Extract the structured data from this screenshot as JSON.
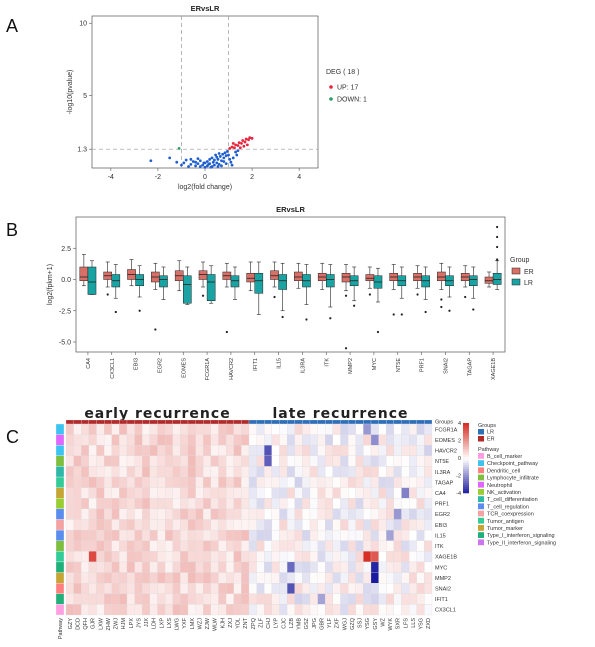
{
  "panels": {
    "A": {
      "label": "A"
    },
    "B": {
      "label": "B"
    },
    "C": {
      "label": "C"
    }
  },
  "chart_data": [
    {
      "type": "scatter",
      "panel": "A",
      "title": "ERvsLR",
      "xlabel": "log2(fold change)",
      "ylabel": "-log10(pvalue)",
      "xlim": [
        -4.8,
        4.8
      ],
      "ylim": [
        0,
        10.5
      ],
      "xticks": [
        "-4",
        "-2",
        "0",
        "2",
        "4"
      ],
      "yticks": [
        "1.3",
        "5",
        "10"
      ],
      "threshold_lines": {
        "x": [
          -1,
          1
        ],
        "y": 1.3
      },
      "legend": {
        "title": "DEG ( 18 )",
        "items": [
          "UP: 17",
          "DOWN: 1"
        ],
        "placement": "right"
      },
      "series": [
        {
          "name": "UP: 17",
          "color": "#e8253d",
          "points": [
            [
              1.05,
              1.35
            ],
            [
              1.15,
              1.45
            ],
            [
              1.25,
              1.4
            ],
            [
              1.3,
              1.6
            ],
            [
              1.4,
              1.55
            ],
            [
              1.45,
              1.75
            ],
            [
              1.55,
              1.7
            ],
            [
              1.6,
              1.9
            ],
            [
              1.7,
              1.8
            ],
            [
              1.75,
              2.0
            ],
            [
              1.85,
              1.95
            ],
            [
              1.9,
              2.1
            ],
            [
              2.0,
              2.05
            ],
            [
              1.2,
              1.7
            ],
            [
              1.5,
              1.4
            ],
            [
              1.65,
              1.5
            ],
            [
              1.8,
              1.6
            ]
          ]
        },
        {
          "name": "DOWN: 1",
          "color": "#2a9d6a",
          "points": [
            [
              -1.1,
              1.35
            ]
          ]
        },
        {
          "name": "",
          "color": "#1f5fd1",
          "points": [
            [
              -1.5,
              0.7
            ],
            [
              -2.3,
              0.5
            ],
            [
              -1.2,
              0.4
            ],
            [
              -0.9,
              0.35
            ],
            [
              -0.8,
              0.55
            ],
            [
              -0.6,
              0.25
            ],
            [
              -0.5,
              0.45
            ],
            [
              -0.4,
              0.15
            ],
            [
              -0.3,
              0.3
            ],
            [
              -0.2,
              0.1
            ],
            [
              -0.1,
              0.2
            ],
            [
              0,
              0.05
            ],
            [
              0.1,
              0.15
            ],
            [
              0.2,
              0.3
            ],
            [
              0.3,
              0.1
            ],
            [
              0.35,
              0.4
            ],
            [
              0.4,
              0.2
            ],
            [
              0.5,
              0.35
            ],
            [
              0.55,
              0.6
            ],
            [
              0.6,
              0.25
            ],
            [
              0.65,
              0.8
            ],
            [
              0.7,
              0.5
            ],
            [
              0.75,
              0.95
            ],
            [
              0.8,
              0.7
            ],
            [
              0.85,
              1.05
            ],
            [
              0.9,
              0.85
            ],
            [
              0.95,
              1.15
            ],
            [
              1.0,
              0.9
            ],
            [
              1.05,
              0.6
            ],
            [
              1.1,
              0.4
            ],
            [
              1.15,
              0.2
            ],
            [
              0.7,
              0.15
            ],
            [
              0.9,
              0.3
            ],
            [
              1.2,
              0.7
            ],
            [
              0.3,
              0.7
            ],
            [
              0.45,
              0.9
            ],
            [
              0.2,
              0.6
            ],
            [
              0.1,
              0.45
            ],
            [
              -0.2,
              0.5
            ],
            [
              -0.3,
              0.65
            ],
            [
              -0.05,
              0.35
            ],
            [
              0.25,
              0.05
            ],
            [
              0.55,
              0.1
            ],
            [
              0.8,
              0.45
            ],
            [
              -0.7,
              0.1
            ],
            [
              -1.0,
              0.2
            ],
            [
              1.3,
              1.1
            ],
            [
              1.35,
              0.9
            ],
            [
              1.4,
              1.2
            ],
            [
              0.6,
              1.0
            ],
            [
              0.5,
              0.75
            ],
            [
              0.4,
              0.55
            ],
            [
              -0.4,
              0.4
            ],
            [
              -0.6,
              0.6
            ],
            [
              0.15,
              0.25
            ],
            [
              0.0,
              0.35
            ]
          ]
        }
      ]
    },
    {
      "type": "box",
      "panel": "B",
      "title": "ERvsLR",
      "ylabel": "log2(fpkm+1)",
      "ylim": [
        -5.8,
        5.0
      ],
      "yticks": [
        "-5.0",
        "-2.5",
        "0.0",
        "2.5"
      ],
      "legend": {
        "title": "Group",
        "items": [
          "ER",
          "LR"
        ],
        "placement": "right"
      },
      "groups": [
        {
          "name": "ER",
          "color": "#d97068"
        },
        {
          "name": "LR",
          "color": "#1aa3a3"
        }
      ],
      "categories": [
        "CA4",
        "CX3CL1",
        "EBI3",
        "EGR2",
        "EOMES",
        "FCGR1A",
        "HAVCR2",
        "IFIT1",
        "IL15",
        "IL3RA",
        "ITK",
        "MMP2",
        "MYC",
        "NT5E",
        "PRF1",
        "SNAI2",
        "TAGAP",
        "XAGE1B"
      ],
      "boxes": {
        "ER": [
          {
            "q1": -0.1,
            "med": 0.2,
            "q3": 1.0,
            "lo": -0.5,
            "hi": 2.0,
            "out": []
          },
          {
            "q1": 0.0,
            "med": 0.3,
            "q3": 0.6,
            "lo": -0.6,
            "hi": 1.4,
            "out": [
              -1.2
            ]
          },
          {
            "q1": 0.0,
            "med": 0.4,
            "q3": 0.8,
            "lo": -0.5,
            "hi": 1.6,
            "out": []
          },
          {
            "q1": -0.2,
            "med": 0.2,
            "q3": 0.6,
            "lo": -0.8,
            "hi": 1.3,
            "out": [
              -4.0
            ]
          },
          {
            "q1": -0.1,
            "med": 0.3,
            "q3": 0.7,
            "lo": -0.9,
            "hi": 1.5,
            "out": []
          },
          {
            "q1": 0.0,
            "med": 0.4,
            "q3": 0.7,
            "lo": -0.6,
            "hi": 1.4,
            "out": [
              -1.3
            ]
          },
          {
            "q1": 0.0,
            "med": 0.3,
            "q3": 0.6,
            "lo": -0.6,
            "hi": 1.3,
            "out": [
              -4.2
            ]
          },
          {
            "q1": -0.2,
            "med": 0.1,
            "q3": 0.5,
            "lo": -0.9,
            "hi": 1.4,
            "out": []
          },
          {
            "q1": 0.0,
            "med": 0.3,
            "q3": 0.7,
            "lo": -0.6,
            "hi": 1.4,
            "out": [
              -1.4
            ]
          },
          {
            "q1": -0.1,
            "med": 0.2,
            "q3": 0.6,
            "lo": -0.7,
            "hi": 1.3,
            "out": []
          },
          {
            "q1": -0.1,
            "med": 0.2,
            "q3": 0.5,
            "lo": -0.8,
            "hi": 1.3,
            "out": []
          },
          {
            "q1": -0.2,
            "med": 0.2,
            "q3": 0.5,
            "lo": -0.9,
            "hi": 1.2,
            "out": [
              -1.3,
              -5.5
            ]
          },
          {
            "q1": -0.1,
            "med": 0.1,
            "q3": 0.4,
            "lo": -0.7,
            "hi": 1.0,
            "out": [
              -1.2
            ]
          },
          {
            "q1": -0.1,
            "med": 0.2,
            "q3": 0.5,
            "lo": -0.8,
            "hi": 1.2,
            "out": [
              -2.8
            ]
          },
          {
            "q1": -0.1,
            "med": 0.2,
            "q3": 0.5,
            "lo": -0.7,
            "hi": 1.1,
            "out": [
              -1.2
            ]
          },
          {
            "q1": -0.1,
            "med": 0.2,
            "q3": 0.6,
            "lo": -0.8,
            "hi": 1.3,
            "out": [
              -1.6,
              -2.2
            ]
          },
          {
            "q1": -0.1,
            "med": 0.2,
            "q3": 0.5,
            "lo": -0.6,
            "hi": 1.1,
            "out": [
              -1.4
            ]
          },
          {
            "q1": -0.3,
            "med": -0.1,
            "q3": 0.2,
            "lo": -0.6,
            "hi": 0.6,
            "out": []
          }
        ],
        "LR": [
          {
            "q1": -1.2,
            "med": -0.2,
            "q3": 1.0,
            "lo": -1.2,
            "hi": 1.5,
            "out": []
          },
          {
            "q1": -0.6,
            "med": -0.1,
            "q3": 0.4,
            "lo": -1.5,
            "hi": 1.2,
            "out": [
              -2.6
            ]
          },
          {
            "q1": -0.5,
            "med": 0.0,
            "q3": 0.4,
            "lo": -1.4,
            "hi": 1.1,
            "out": [
              -2.5
            ]
          },
          {
            "q1": -0.6,
            "med": 0.0,
            "q3": 0.3,
            "lo": -1.6,
            "hi": 1.0,
            "out": []
          },
          {
            "q1": -1.9,
            "med": -0.4,
            "q3": 0.3,
            "lo": -2.0,
            "hi": 1.0,
            "out": []
          },
          {
            "q1": -1.7,
            "med": -0.2,
            "q3": 0.4,
            "lo": -1.9,
            "hi": 1.1,
            "out": []
          },
          {
            "q1": -0.6,
            "med": -0.1,
            "q3": 0.3,
            "lo": -1.6,
            "hi": 1.0,
            "out": []
          },
          {
            "q1": -1.1,
            "med": -0.1,
            "q3": 0.5,
            "lo": -2.8,
            "hi": 1.4,
            "out": []
          },
          {
            "q1": -0.8,
            "med": -0.1,
            "q3": 0.4,
            "lo": -2.5,
            "hi": 1.3,
            "out": [
              -3.0
            ]
          },
          {
            "q1": -0.6,
            "med": -0.1,
            "q3": 0.4,
            "lo": -2.0,
            "hi": 1.2,
            "out": [
              -3.2
            ]
          },
          {
            "q1": -0.6,
            "med": 0.0,
            "q3": 0.4,
            "lo": -2.2,
            "hi": 1.2,
            "out": [
              -3.1
            ]
          },
          {
            "q1": -0.5,
            "med": -0.1,
            "q3": 0.3,
            "lo": -1.7,
            "hi": 1.0,
            "out": [
              -2.1
            ]
          },
          {
            "q1": -0.7,
            "med": -0.2,
            "q3": 0.3,
            "lo": -1.8,
            "hi": 0.9,
            "out": [
              -4.2
            ]
          },
          {
            "q1": -0.5,
            "med": -0.1,
            "q3": 0.3,
            "lo": -1.5,
            "hi": 1.0,
            "out": [
              -2.8
            ]
          },
          {
            "q1": -0.6,
            "med": -0.1,
            "q3": 0.3,
            "lo": -1.6,
            "hi": 1.0,
            "out": [
              -2.6
            ]
          },
          {
            "q1": -0.5,
            "med": -0.1,
            "q3": 0.3,
            "lo": -1.4,
            "hi": 1.0,
            "out": [
              -2.5
            ]
          },
          {
            "q1": -0.5,
            "med": 0.0,
            "q3": 0.3,
            "lo": -1.5,
            "hi": 1.0,
            "out": [
              -2.4
            ]
          },
          {
            "q1": -0.4,
            "med": 0.0,
            "q3": 0.5,
            "lo": -0.8,
            "hi": 1.5,
            "out": [
              1.6,
              2.6,
              3.4,
              4.2
            ]
          }
        ]
      }
    },
    {
      "type": "heatmap",
      "panel": "C",
      "column_groups": [
        {
          "name": "early recurrence",
          "label_color": "ER",
          "count": 24
        },
        {
          "name": "late recurrence",
          "label_color": "LR",
          "count": 24
        }
      ],
      "groups_label": "Groups",
      "pathway_label": "Pathway",
      "rows": [
        "FCGR1A",
        "EOMES",
        "HAVCR2",
        "NT5E",
        "IL3RA",
        "TAGAP",
        "CA4",
        "PRF1",
        "EGR2",
        "EBI3",
        "IL15",
        "ITK",
        "XAGE1B",
        "MYC",
        "MMP2",
        "SNAI2",
        "IFIT1",
        "CX3CL1"
      ],
      "row_pathway": [
        "Checkpoint_pathway",
        "Neutrophil",
        "Checkpoint_pathway",
        "Lymphocyte_infiltrate",
        "T_cell_differentiation",
        "Tumor_antigen",
        "Tumor_marker",
        "NK_activation",
        "T_cell_regulation",
        "TCR_coexpression",
        "T_cell_regulation",
        "Lymphocyte_infiltrate",
        "Tumor_antigen",
        "Type_I_interferon_signaling",
        "Tumor_marker",
        "Dendritic_cell",
        "Type_I_interferon_signaling",
        "B_cell_marker"
      ],
      "columns": [
        "GZY",
        "DCD",
        "QFH",
        "GJR",
        "LXW",
        "ZHW",
        "ZWJ",
        "HJM",
        "LPX",
        "JYS",
        "JJX",
        "LDH",
        "LXP",
        "LXS",
        "LWG",
        "YXF",
        "LMX",
        "WZJ",
        "ZJW",
        "WLW",
        "KJH",
        "ZXJ",
        "YDL",
        "ZNT",
        "ZPQ",
        "ZLF",
        "CHJ",
        "LYP",
        "CJC",
        "LZB",
        "YMB",
        "GSZ",
        "JPG",
        "GBR",
        "YLF",
        "ZXF",
        "WGJ",
        "GZQ",
        "SSJ",
        "YSG",
        "GSY",
        "WZ",
        "WYK",
        "SXR",
        "LFS",
        "LLS",
        "YSG2",
        "ZXD"
      ],
      "column_labels": [
        "GZY",
        "DCD",
        "QFH",
        "GJR",
        "LXW",
        "ZHW",
        "ZWJ",
        "HJM",
        "LPX",
        "JYS",
        "JJX",
        "LDH",
        "LXP",
        "LXS",
        "LWG",
        "YXF",
        "LMX",
        "WZJ",
        "ZJW",
        "WLW",
        "KJH",
        "ZXJ",
        "YDL",
        "ZNT",
        "ZPQ",
        "ZLF",
        "CHJ",
        "LYP",
        "CJC",
        "LZB",
        "YMB",
        "GSZ",
        "JPG",
        "GBR",
        "YLF",
        "ZXF",
        "WGJ",
        "GZQ",
        "SSJ",
        "YSG",
        "GSY",
        "WZ",
        "WYK",
        "SXR",
        "LFS",
        "LLS",
        "YSG",
        "ZXD"
      ],
      "colorbar_ticks": [
        "4",
        "2",
        "0",
        "-2",
        "-4"
      ],
      "legend_groups": [
        "LR",
        "ER"
      ],
      "legend_pathways": [
        "B_cell_marker",
        "Checkpoint_pathway",
        "Dendritic_cell",
        "Lymphocyte_infiltrate",
        "Neutrophil",
        "NK_activation",
        "T_cell_differentiation",
        "T_cell_regulation",
        "TCR_coexpression",
        "Tumor_antigen",
        "Tumor_marker",
        "Type_I_interferon_signaling",
        "Type_II_interferon_signaling"
      ],
      "strong_cells": [
        {
          "row": "XAGE1B",
          "col": "YSG",
          "value": 4.0
        },
        {
          "row": "XAGE1B",
          "col": "GSY",
          "value": 3.2
        },
        {
          "row": "XAGE1B",
          "col": "GJR",
          "value": 3.5
        },
        {
          "row": "MYC",
          "col": "GSY",
          "value": -3.8
        },
        {
          "row": "MMP2",
          "col": "GSY",
          "value": -4.0
        },
        {
          "row": "HAVCR2",
          "col": "CHJ",
          "value": -3.0
        },
        {
          "row": "NT5E",
          "col": "CHJ",
          "value": -2.8
        },
        {
          "row": "SNAI2",
          "col": "LZB",
          "value": -3.0
        },
        {
          "row": "MYC",
          "col": "LZB",
          "value": -2.6
        },
        {
          "row": "IFIT1",
          "col": "GBR",
          "value": -1.6
        },
        {
          "row": "FCGR1A",
          "col": "YSG",
          "value": -1.8
        },
        {
          "row": "EOMES",
          "col": "GSY",
          "value": -2.0
        },
        {
          "row": "CA4",
          "col": "LFS",
          "value": -2.2
        },
        {
          "row": "EGR2",
          "col": "SXR",
          "value": -1.8
        },
        {
          "row": "IL15",
          "col": "WYK",
          "value": -1.6
        }
      ]
    }
  ],
  "colors": {
    "er": "#d97068",
    "lr": "#1aa3a3",
    "hm_high": "#d73027",
    "hm_low": "#1a1a9e",
    "bar_er": "#b22a2a",
    "bar_lr": "#2f6fb8",
    "pathways": [
      "#ff9ee0",
      "#3cc3f0",
      "#ff7f7f",
      "#7fbf3f",
      "#e066ff",
      "#9acd32",
      "#2fb8a8",
      "#5b8def",
      "#f4a3a3",
      "#33cc99",
      "#c7a535",
      "#22b07a",
      "#cc77ee"
    ]
  }
}
